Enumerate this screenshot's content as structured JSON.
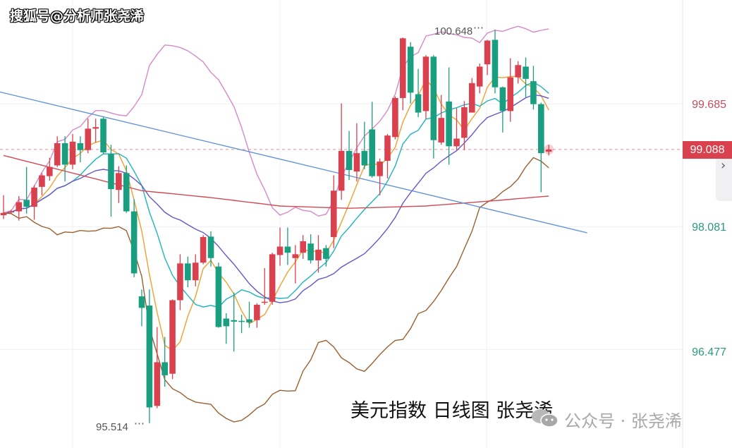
{
  "watermark": "搜狐号@分析师张尧浠",
  "caption": "美元指数 日线图 张尧浠",
  "wechat": {
    "icon": "wechat-icon",
    "text": "公众号 · 张尧浠"
  },
  "chart_data": {
    "type": "candlestick",
    "title": "",
    "ylim": [
      95.19,
      101.04
    ],
    "grid": true,
    "y_ticks": [
      "99.685",
      "98.081",
      "96.477"
    ],
    "y_tick_values": [
      99.685,
      98.081,
      96.477
    ],
    "current_price": {
      "label": "99.088",
      "value": 99.088,
      "color": "#d9414f"
    },
    "high_annotation": {
      "label": "100.648",
      "index": 64,
      "value": 100.648
    },
    "low_annotation": {
      "label": "95.514",
      "index": 19,
      "value": 95.514
    },
    "colors": {
      "up": "#d9414f",
      "down": "#1a9e80",
      "axis_up": "#c0505e",
      "axis_down": "#2a9a7a"
    },
    "ohlc": [
      [
        98.23,
        98.49,
        98.18,
        98.26
      ],
      [
        98.27,
        98.3,
        98.25,
        98.28
      ],
      [
        98.28,
        98.48,
        98.16,
        98.4
      ],
      [
        98.43,
        98.86,
        98.25,
        98.34
      ],
      [
        98.34,
        98.62,
        98.17,
        98.59
      ],
      [
        98.6,
        98.78,
        98.49,
        98.75
      ],
      [
        98.74,
        98.98,
        98.68,
        98.86
      ],
      [
        98.88,
        99.26,
        98.86,
        99.17
      ],
      [
        99.17,
        99.26,
        98.67,
        98.89
      ],
      [
        98.89,
        99.29,
        98.83,
        99.19
      ],
      [
        99.17,
        99.26,
        98.92,
        99.08
      ],
      [
        99.08,
        99.49,
        99.04,
        99.36
      ],
      [
        99.36,
        99.49,
        99.18,
        99.38
      ],
      [
        99.49,
        99.51,
        99.03,
        99.05
      ],
      [
        99.03,
        99.15,
        98.21,
        98.57
      ],
      [
        98.56,
        98.87,
        98.39,
        98.78
      ],
      [
        98.78,
        98.88,
        98.26,
        98.28
      ],
      [
        98.28,
        98.44,
        97.42,
        97.47
      ],
      [
        97.17,
        97.26,
        96.78,
        97.02
      ],
      [
        97.05,
        97.26,
        95.514,
        95.72
      ],
      [
        95.74,
        96.77,
        95.71,
        96.31
      ],
      [
        96.31,
        96.64,
        95.99,
        96.14
      ],
      [
        96.16,
        97.13,
        96.09,
        97.12
      ],
      [
        97.12,
        97.72,
        96.99,
        97.6
      ],
      [
        97.6,
        97.69,
        97.29,
        97.38
      ],
      [
        97.38,
        97.72,
        97.3,
        97.61
      ],
      [
        97.61,
        97.97,
        97.59,
        97.945
      ],
      [
        97.95,
        98.02,
        97.56,
        97.67
      ],
      [
        97.56,
        97.61,
        96.76,
        96.77
      ],
      [
        96.88,
        96.95,
        96.55,
        96.78
      ],
      [
        96.86,
        97.22,
        96.45,
        96.84
      ],
      [
        96.85,
        96.93,
        96.69,
        96.84
      ],
      [
        96.87,
        97.1,
        96.76,
        96.83
      ],
      [
        96.86,
        97.08,
        96.76,
        97.06
      ],
      [
        97.09,
        97.54,
        97.06,
        97.1
      ],
      [
        97.1,
        97.74,
        97.06,
        97.72
      ],
      [
        97.71,
        98.07,
        97.57,
        97.82
      ],
      [
        97.82,
        98.07,
        97.58,
        97.74
      ],
      [
        97.67,
        97.84,
        97.34,
        97.72
      ],
      [
        97.74,
        97.97,
        97.66,
        97.89
      ],
      [
        97.86,
        97.98,
        97.6,
        97.64
      ],
      [
        97.64,
        97.97,
        97.48,
        97.78
      ],
      [
        97.8,
        97.84,
        97.56,
        97.66
      ],
      [
        97.945,
        98.75,
        97.8,
        98.55
      ],
      [
        98.55,
        99.69,
        98.43,
        99.07
      ],
      [
        99.07,
        99.33,
        98.69,
        98.82
      ],
      [
        98.8,
        99.43,
        98.67,
        99.04
      ],
      [
        99.07,
        99.45,
        98.83,
        98.88
      ],
      [
        99.35,
        99.71,
        98.72,
        98.74
      ],
      [
        98.74,
        98.97,
        98.49,
        98.93
      ],
      [
        98.94,
        99.29,
        98.71,
        99.27
      ],
      [
        99.25,
        99.78,
        99.22,
        99.76
      ],
      [
        99.76,
        100.55,
        99.6,
        100.54
      ],
      [
        100.43,
        100.49,
        99.69,
        99.83
      ],
      [
        99.81,
        100.14,
        99.51,
        99.57
      ],
      [
        99.59,
        100.32,
        99.49,
        100.3
      ],
      [
        100.3,
        100.32,
        98.97,
        99.21
      ],
      [
        99.18,
        99.8,
        99.15,
        99.5
      ],
      [
        99.715,
        100.16,
        98.89,
        99.13
      ],
      [
        99.13,
        99.63,
        99.08,
        99.23
      ],
      [
        99.24,
        99.72,
        99.08,
        99.64
      ],
      [
        99.57,
        100.02,
        99.57,
        99.955
      ],
      [
        99.91,
        100.21,
        99.82,
        100.17
      ],
      [
        100.2,
        100.52,
        100.06,
        100.51
      ],
      [
        100.52,
        100.648,
        99.82,
        99.9
      ],
      [
        99.9,
        99.91,
        99.31,
        99.59
      ],
      [
        99.59,
        100.28,
        99.45,
        100.03
      ],
      [
        100.03,
        100.24,
        99.95,
        100.19
      ],
      [
        100.17,
        100.29,
        99.77,
        100.01
      ],
      [
        99.98,
        100.18,
        99.61,
        99.68
      ],
      [
        99.68,
        99.7,
        98.53,
        99.04
      ],
      [
        99.06,
        99.15,
        99.01,
        99.088
      ]
    ],
    "overlays": [
      {
        "type": "sma",
        "period": 5,
        "color": "#f0a030"
      },
      {
        "type": "sma",
        "period": 10,
        "color": "#1fb5bd"
      },
      {
        "type": "sma",
        "period": 20,
        "color": "#6657c8"
      },
      {
        "type": "bollinger_upper",
        "period": 20,
        "k": 2,
        "color": "#d58ac8"
      },
      {
        "type": "bollinger_lower",
        "period": 20,
        "k": 2,
        "color": "#9a6030"
      }
    ],
    "long_ma": {
      "color": "#d04a55",
      "index": [
        0,
        9,
        18,
        27,
        36,
        45,
        55,
        64,
        71
      ],
      "value": [
        99.01,
        98.78,
        98.55,
        98.46,
        98.35,
        98.32,
        98.35,
        98.42,
        98.48
      ]
    },
    "trendline": {
      "color": "#5b8ed8",
      "start": {
        "index": -0.5,
        "value": 99.84
      },
      "end": {
        "index": 76,
        "value": 98.0
      }
    }
  }
}
